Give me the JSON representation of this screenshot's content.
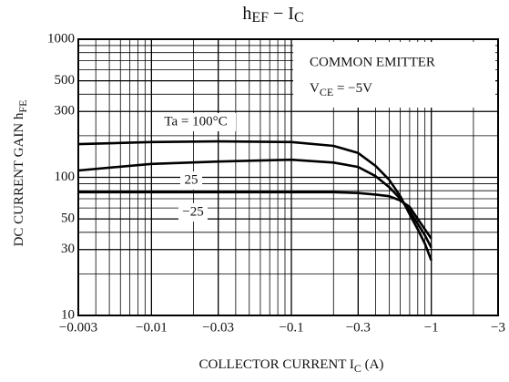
{
  "chart_data": {
    "type": "line",
    "title": [
      "h",
      "EF",
      " − I",
      "C"
    ],
    "y_label": [
      "DC CURRENT GAIN  h",
      "FE"
    ],
    "x_label": [
      "COLLECTOR CURRENT  I",
      "C",
      "  (A)"
    ],
    "annotation": [
      "COMMON EMITTER",
      "V",
      "CE",
      " = −5V"
    ],
    "log_x": true,
    "log_y": true,
    "grid": true,
    "x": [
      -0.003,
      -0.01,
      -0.03,
      -0.1,
      -0.2,
      -0.3,
      -0.4,
      -0.5,
      -0.6,
      -0.7,
      -0.8,
      -0.9,
      -1.0
    ],
    "series": [
      {
        "name": "Ta = 100°C",
        "color": "#000000",
        "values": [
          174,
          180,
          182,
          180,
          169,
          150,
          121,
          96,
          73,
          54,
          42,
          33,
          25
        ]
      },
      {
        "name": "25",
        "color": "#000000",
        "values": [
          112,
          125,
          130,
          134,
          128,
          119,
          102,
          85,
          70,
          57,
          46,
          38,
          31
        ]
      },
      {
        "name": "−25",
        "color": "#000000",
        "values": [
          78,
          78,
          78,
          78,
          78,
          77,
          75,
          73,
          68,
          61,
          50,
          42,
          36
        ]
      }
    ],
    "xlim": [
      -0.003,
      -3
    ],
    "ylim": [
      10,
      1000
    ],
    "xticks": [
      {
        "value": -0.003,
        "label": "−0.003"
      },
      {
        "value": -0.01,
        "label": "−0.01"
      },
      {
        "value": -0.03,
        "label": "−0.03"
      },
      {
        "value": -0.1,
        "label": "−0.1"
      },
      {
        "value": -0.3,
        "label": "−0.3"
      },
      {
        "value": -1,
        "label": "−1"
      },
      {
        "value": -3,
        "label": "−3"
      }
    ],
    "yticks": [
      10,
      30,
      50,
      100,
      300,
      500,
      1000
    ],
    "xminor": [
      -0.004,
      -0.005,
      -0.006,
      -0.007,
      -0.008,
      -0.009,
      -0.02,
      -0.04,
      -0.05,
      -0.06,
      -0.07,
      -0.08,
      -0.09,
      -0.2,
      -0.4,
      -0.5,
      -0.6,
      -0.7,
      -0.8,
      -0.9,
      -2
    ],
    "yminor": [
      20,
      40,
      60,
      70,
      80,
      90,
      200,
      400,
      600,
      700,
      800,
      900
    ]
  }
}
